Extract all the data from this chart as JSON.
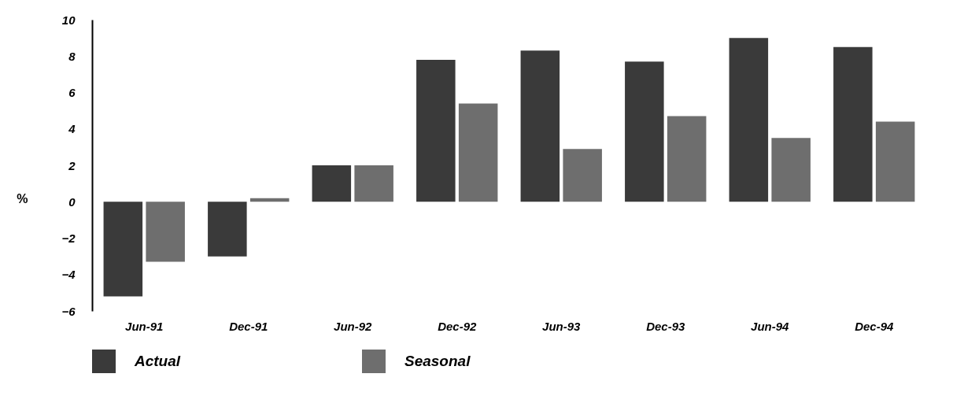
{
  "chart_data": {
    "type": "bar",
    "ylabel": "%",
    "categories": [
      "Jun-91",
      "Dec-91",
      "Jun-92",
      "Dec-92",
      "Jun-93",
      "Dec-93",
      "Jun-94",
      "Dec-94"
    ],
    "series": [
      {
        "name": "Actual",
        "color": "#3a3a3a",
        "values": [
          -5.2,
          -3.0,
          2.0,
          7.8,
          8.3,
          7.7,
          9.0,
          8.5
        ]
      },
      {
        "name": "Seasonal",
        "color": "#6e6e6e",
        "values": [
          -3.3,
          0.2,
          2.0,
          5.4,
          2.9,
          4.7,
          3.5,
          4.4
        ]
      }
    ],
    "ylim": [
      -6,
      10
    ],
    "yticks": [
      -6,
      -4,
      -2,
      0,
      2,
      4,
      6,
      8,
      10
    ],
    "legend": "bottom"
  }
}
